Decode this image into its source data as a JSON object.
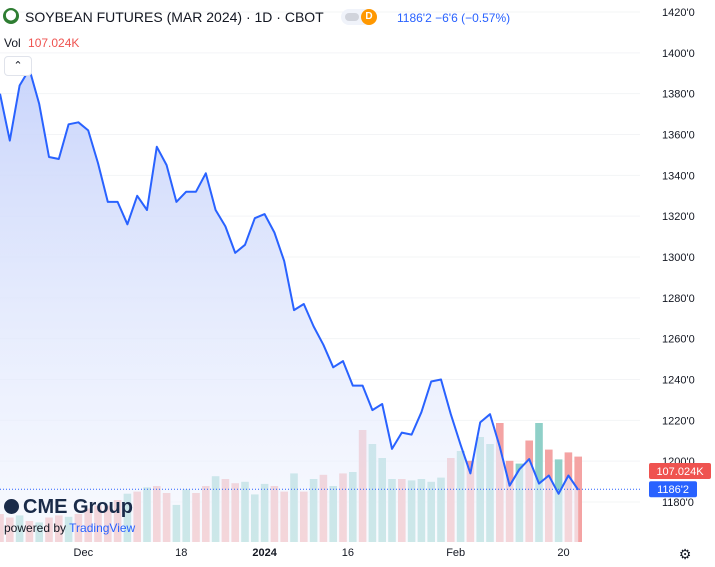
{
  "header": {
    "symbol_logo": "soybean-logo-icon",
    "title": "SOYBEAN FUTURES (MAR 2024) · 1D · CBOT",
    "toggle_label": "D",
    "quote": "1186'2  −6'6 (−0.57%)",
    "volume_label": "Vol",
    "volume_value": "107.024K",
    "collapse_icon": "chevron-up-icon"
  },
  "branding": {
    "cme": "CME Group",
    "powered_prefix": "powered by",
    "powered_brand": "TradingView"
  },
  "colors": {
    "line": "#2962ff",
    "area_top": "#c7d3fb",
    "area_bottom": "#f4f7fe",
    "up_volume": "#8fd0c8",
    "down_volume": "#f4a3a3",
    "last_price_tag": "#2962ff",
    "volume_tag": "#ef5350"
  },
  "settings_icon": "gear-icon",
  "chart_data": {
    "type": "line",
    "title": "SOYBEAN FUTURES (MAR 2024) · 1D · CBOT",
    "ylim": [
      1170,
      1420
    ],
    "y_ticks": [
      "1420'0",
      "1400'0",
      "1380'0",
      "1360'0",
      "1340'0",
      "1320'0",
      "1300'0",
      "1280'0",
      "1260'0",
      "1240'0",
      "1220'0",
      "1200'0",
      "1180'0"
    ],
    "y_tick_values": [
      1420,
      1400,
      1380,
      1360,
      1340,
      1320,
      1300,
      1280,
      1260,
      1240,
      1220,
      1200,
      1180
    ],
    "x_ticks": [
      {
        "label": "Dec",
        "index": 8.5,
        "bold": false
      },
      {
        "label": "18",
        "index": 18.5,
        "bold": false
      },
      {
        "label": "2024",
        "index": 27,
        "bold": true
      },
      {
        "label": "16",
        "index": 35.5,
        "bold": false
      },
      {
        "label": "Feb",
        "index": 46.5,
        "bold": false
      },
      {
        "label": "20",
        "index": 57.5,
        "bold": false
      }
    ],
    "close": [
      1380,
      1357,
      1384,
      1392,
      1375,
      1349,
      1348,
      1365,
      1366,
      1362,
      1346,
      1327,
      1327,
      1316,
      1330,
      1323,
      1354,
      1345,
      1327,
      1332,
      1332,
      1341,
      1323,
      1315,
      1302,
      1306,
      1319,
      1321,
      1312,
      1298,
      1274,
      1277,
      1266,
      1257,
      1246,
      1249,
      1237,
      1237,
      1225,
      1228,
      1206,
      1214,
      1213,
      1224,
      1239,
      1240,
      1223,
      1208,
      1194,
      1219,
      1223,
      1207,
      1188,
      1196,
      1201,
      1189,
      1193,
      1184,
      1193,
      1186
    ],
    "volume_direction": [
      "down",
      "down",
      "up",
      "down",
      "up",
      "down",
      "down",
      "up",
      "down",
      "down",
      "down",
      "down",
      "down",
      "up",
      "down",
      "up",
      "down",
      "down",
      "up",
      "up",
      "down",
      "down",
      "up",
      "down",
      "down",
      "up",
      "up",
      "up",
      "down",
      "down",
      "up",
      "down",
      "up",
      "down",
      "up",
      "down",
      "up",
      "down",
      "up",
      "up",
      "up",
      "down",
      "up",
      "up",
      "up",
      "up",
      "down",
      "up",
      "down",
      "up",
      "up",
      "down",
      "down",
      "up",
      "down",
      "up",
      "down",
      "up",
      "down",
      "down"
    ],
    "volume": [
      40,
      35,
      38,
      30,
      28,
      35,
      38,
      36,
      40,
      48,
      52,
      52,
      60,
      69,
      72,
      78,
      80,
      70,
      53,
      75,
      70,
      80,
      94,
      90,
      84,
      86,
      68,
      83,
      80,
      72,
      98,
      72,
      90,
      96,
      80,
      98,
      100,
      160,
      140,
      120,
      90,
      90,
      88,
      90,
      86,
      92,
      120,
      130,
      116,
      150,
      140,
      170,
      116,
      112,
      145,
      170,
      132,
      118,
      128,
      122
    ],
    "last_price": "1186'2",
    "last_price_value": 1186.25,
    "last_volume": "107.024K"
  }
}
